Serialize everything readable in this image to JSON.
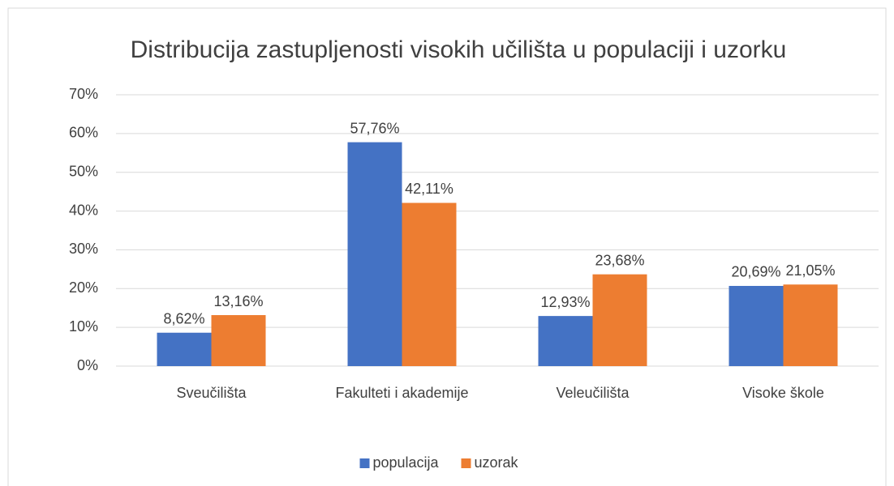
{
  "chart_data": {
    "type": "bar",
    "title": "Distribucija zastupljenosti visokih učilišta u populaciji i uzorku",
    "categories": [
      "Sveučilišta",
      "Fakulteti i akademije",
      "Veleučilišta",
      "Visoke škole"
    ],
    "series": [
      {
        "name": "populacija",
        "color": "#4472c4",
        "values": [
          8.62,
          57.76,
          12.93,
          20.69
        ],
        "value_labels": [
          "8,62%",
          "57,76%",
          "12,93%",
          "20,69%"
        ]
      },
      {
        "name": "uzorak",
        "color": "#ed7d31",
        "values": [
          13.16,
          42.11,
          23.68,
          21.05
        ],
        "value_labels": [
          "13,16%",
          "42,11%",
          "23,68%",
          "21,05%"
        ]
      }
    ],
    "ylim": [
      0,
      70
    ],
    "yticks": [
      {
        "value": 0,
        "label": "0%"
      },
      {
        "value": 10,
        "label": "10%"
      },
      {
        "value": 20,
        "label": "20%"
      },
      {
        "value": 30,
        "label": "30%"
      },
      {
        "value": 40,
        "label": "40%"
      },
      {
        "value": 50,
        "label": "50%"
      },
      {
        "value": 60,
        "label": "60%"
      },
      {
        "value": 70,
        "label": "70%"
      }
    ],
    "grid": true,
    "legend": "bottom"
  }
}
